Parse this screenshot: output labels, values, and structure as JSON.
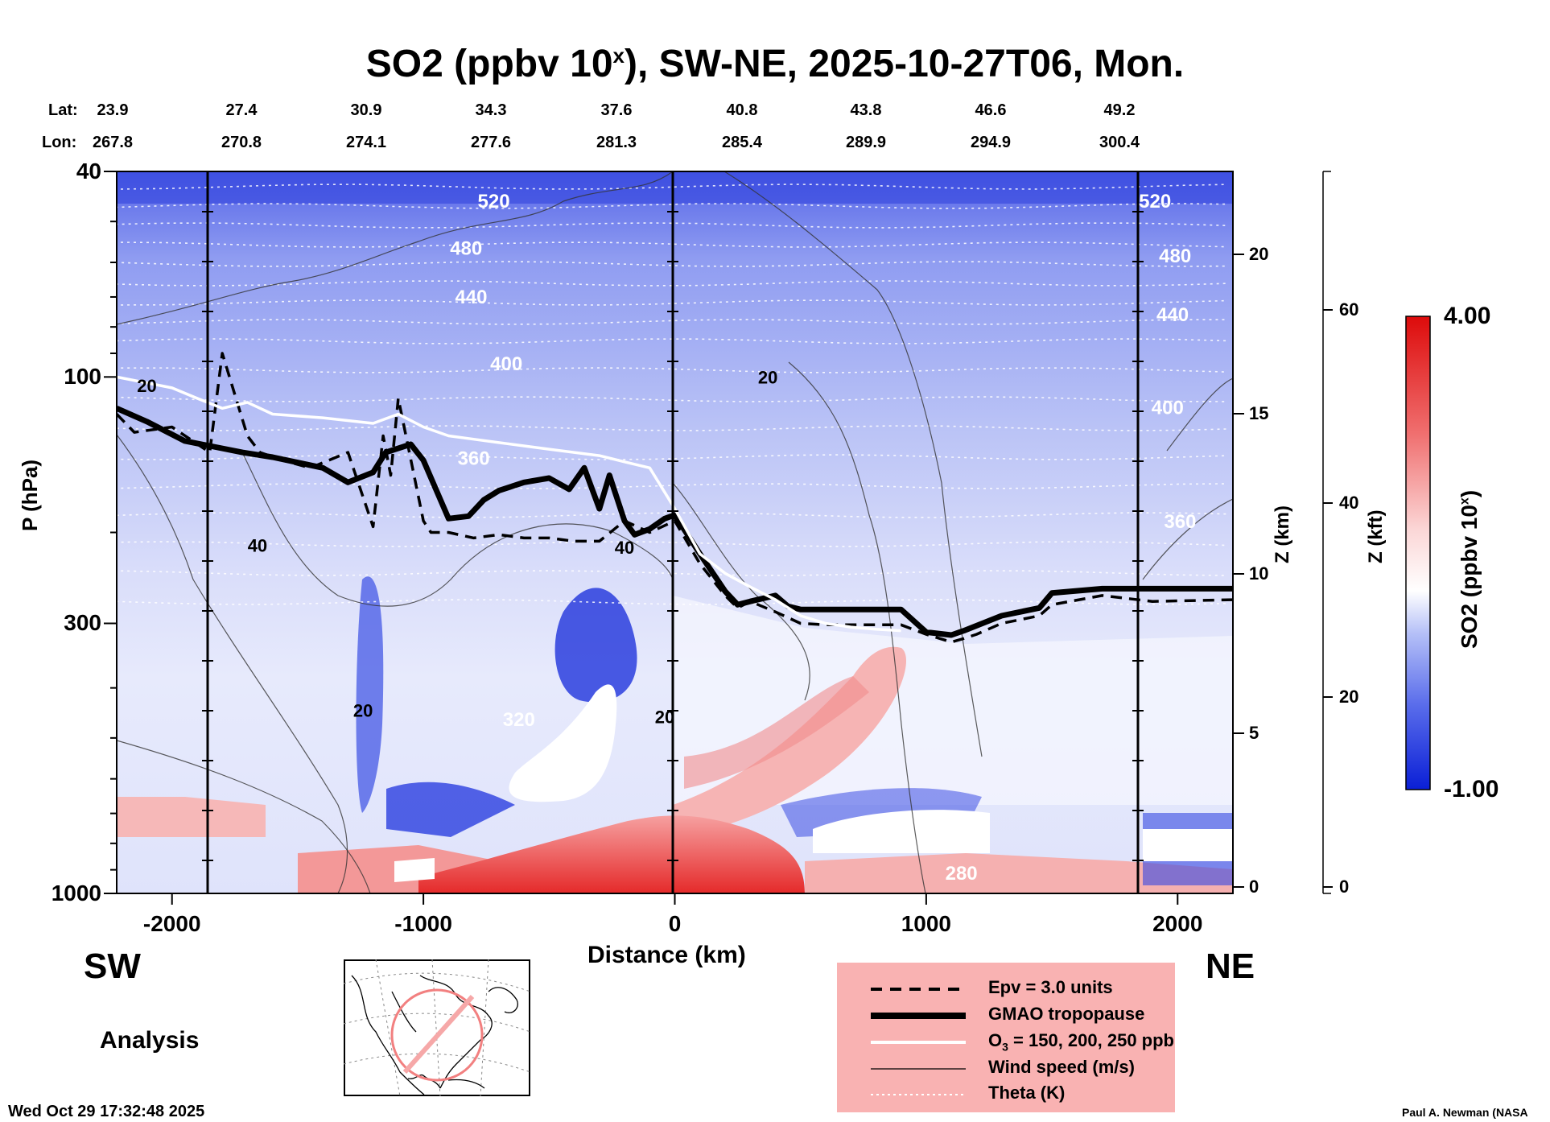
{
  "chart_data": {
    "type": "heatmap",
    "title": "SO2 (ppbv 10",
    "title_sup": "x",
    "title_rest": "), SW-NE, 2025-10-27T06, Mon.",
    "xlabel": "Distance (km)",
    "ylabel": "P (hPa)",
    "right_axis_z_km_label": "Z (km)",
    "right_axis_z_kft_label": "Z (kft)",
    "x_ticks": [
      "-2000",
      "-1000",
      "0",
      "1000",
      "2000"
    ],
    "x_tick_values": [
      -2000,
      -1000,
      0,
      1000,
      2000
    ],
    "xlim": [
      -2220,
      2220
    ],
    "y_ticks": [
      "40",
      "100",
      "300",
      "1000"
    ],
    "y_tick_values": [
      40,
      100,
      300,
      1000
    ],
    "ylim": [
      1000,
      40
    ],
    "y_scale": "log",
    "z_km_ticks": [
      "0",
      "5",
      "10",
      "15",
      "20"
    ],
    "z_kft_ticks": [
      "0",
      "20",
      "40",
      "60"
    ],
    "lat_label": "Lat:",
    "lon_label": "Lon:",
    "lat": [
      "23.9",
      "27.4",
      "30.9",
      "34.3",
      "37.6",
      "40.8",
      "43.8",
      "46.6",
      "49.2"
    ],
    "lon": [
      "267.8",
      "270.8",
      "274.1",
      "277.6",
      "281.3",
      "285.4",
      "289.9",
      "294.9",
      "300.4"
    ],
    "colorbar": {
      "max_label": "4.00",
      "min_label": "-1.00",
      "label": "SO2 (ppbv 10",
      "label_sup": "x",
      "label_end": ")",
      "colors": [
        "#0a1fd6",
        "#3f55e6",
        "#7d8ef0",
        "#b5c0f7",
        "#e6eafc",
        "#ffffff",
        "#fbd6d6",
        "#f6a0a0",
        "#ef6464",
        "#e52a2a",
        "#dd0b0b"
      ]
    },
    "theta_labels": [
      {
        "text": "520",
        "x": -720,
        "p": 47
      },
      {
        "text": "480",
        "x": -830,
        "p": 58
      },
      {
        "text": "440",
        "x": -810,
        "p": 72
      },
      {
        "text": "400",
        "x": -670,
        "p": 97
      },
      {
        "text": "360",
        "x": -800,
        "p": 148
      },
      {
        "text": "320",
        "x": -620,
        "p": 474
      },
      {
        "text": "280",
        "x": 1140,
        "p": 940
      },
      {
        "text": "520",
        "x": 1910,
        "p": 47
      },
      {
        "text": "480",
        "x": 1990,
        "p": 60
      },
      {
        "text": "440",
        "x": 1980,
        "p": 78
      },
      {
        "text": "400",
        "x": 1960,
        "p": 118
      },
      {
        "text": "360",
        "x": 2010,
        "p": 196
      }
    ],
    "wind_labels": [
      {
        "text": "20",
        "x": -2100,
        "p": 107
      },
      {
        "text": "40",
        "x": -1660,
        "p": 218
      },
      {
        "text": "20",
        "x": -1240,
        "p": 455
      },
      {
        "text": "40",
        "x": -200,
        "p": 220
      },
      {
        "text": "20",
        "x": -40,
        "p": 468
      },
      {
        "text": "20",
        "x": 370,
        "p": 103
      }
    ],
    "series": [
      {
        "name": "GMAO tropopause",
        "x": [
          -2220,
          -2100,
          -1950,
          -1850,
          -1720,
          -1600,
          -1400,
          -1300,
          -1200,
          -1150,
          -1050,
          -1000,
          -900,
          -820,
          -760,
          -700,
          -600,
          -500,
          -420,
          -360,
          -300,
          -260,
          -200,
          -160,
          -100,
          -40,
          0,
          100,
          200,
          250,
          300,
          400,
          450,
          500,
          600,
          700,
          900,
          1000,
          1100,
          1150,
          1300,
          1450,
          1500,
          1700,
          1900,
          2220
        ],
        "p": [
          115,
          122,
          133,
          136,
          140,
          143,
          150,
          160,
          153,
          140,
          135,
          145,
          188,
          186,
          173,
          166,
          160,
          157,
          165,
          150,
          180,
          155,
          190,
          202,
          197,
          188,
          185,
          220,
          260,
          276,
          272,
          265,
          278,
          282,
          282,
          282,
          282,
          312,
          316,
          310,
          290,
          280,
          262,
          257,
          257,
          257
        ]
      },
      {
        "name": "Epv = 3.0 units",
        "x": [
          -2220,
          -2150,
          -2000,
          -1850,
          -1800,
          -1700,
          -1650,
          -1560,
          -1450,
          -1300,
          -1200,
          -1160,
          -1130,
          -1100,
          -1000,
          -970,
          -940,
          -900,
          -800,
          -700,
          -600,
          -500,
          -400,
          -300,
          -200,
          -100,
          0,
          100,
          200,
          250,
          300,
          400,
          500,
          600,
          700,
          900,
          1000,
          1100,
          1150,
          1200,
          1300,
          1450,
          1500,
          1700,
          1900,
          2220
        ],
        "p": [
          118,
          128,
          125,
          140,
          90,
          130,
          140,
          145,
          150,
          140,
          195,
          130,
          155,
          110,
          190,
          200,
          200,
          200,
          205,
          202,
          205,
          205,
          208,
          208,
          190,
          200,
          190,
          230,
          265,
          280,
          272,
          285,
          300,
          302,
          302,
          302,
          315,
          326,
          321,
          315,
          300,
          290,
          276,
          265,
          272,
          270
        ]
      },
      {
        "name": "O3 = 150, 200, 250 ppb",
        "x": [
          -2220,
          -2000,
          -1900,
          -1800,
          -1700,
          -1600,
          -1400,
          -1200,
          -1100,
          -1000,
          -900,
          -800,
          -700,
          -600,
          -500,
          -400,
          -300,
          -200,
          -100,
          0,
          100,
          200,
          300,
          400,
          500,
          600,
          700,
          800,
          900
        ],
        "p": [
          100,
          105,
          110,
          115,
          112,
          118,
          120,
          123,
          118,
          125,
          130,
          132,
          134,
          136,
          138,
          140,
          142,
          146,
          150,
          180,
          220,
          240,
          255,
          270,
          290,
          300,
          305,
          308,
          310
        ]
      }
    ]
  },
  "labels": {
    "sw": "SW",
    "ne": "NE",
    "analysis": "Analysis",
    "timestamp": "Wed Oct 29 17:32:48 2025",
    "credit": "Paul A. Newman (NASA"
  },
  "legend": {
    "epv": "Epv = 3.0 units",
    "tropopause": "GMAO tropopause",
    "o3_prefix": "O",
    "o3_sub": "3",
    "o3_rest": " = 150, 200, 250 ppb",
    "wind": "Wind speed (m/s)",
    "theta": "Theta (K)"
  }
}
